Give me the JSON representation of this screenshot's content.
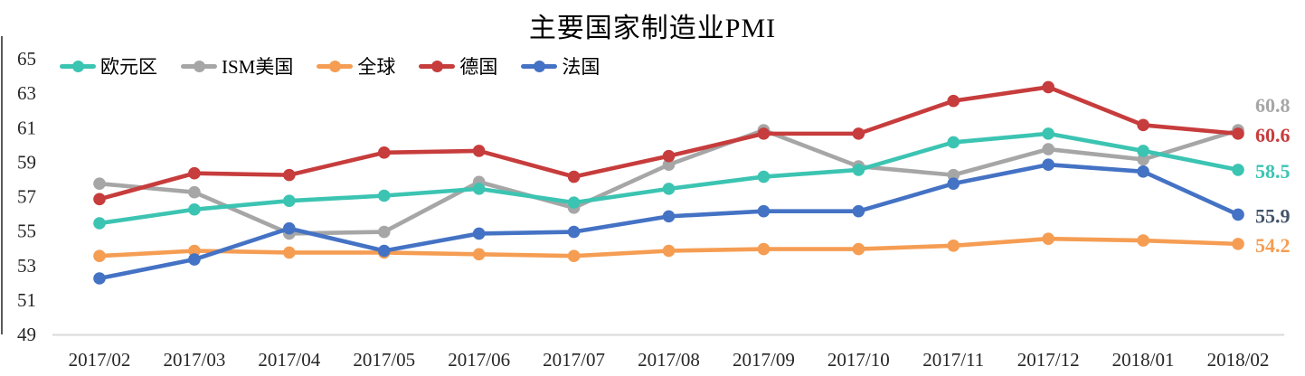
{
  "chart_data": {
    "type": "line",
    "title": "主要国家制造业PMI",
    "xlabel": "",
    "ylabel": "",
    "x": [
      "2017/02",
      "2017/03",
      "2017/04",
      "2017/05",
      "2017/06",
      "2017/07",
      "2017/08",
      "2017/09",
      "2017/10",
      "2017/11",
      "2017/12",
      "2018/01",
      "2018/02"
    ],
    "y_ticks": [
      49,
      51,
      53,
      55,
      57,
      59,
      61,
      63,
      65
    ],
    "ylim": [
      49,
      65
    ],
    "grid": false,
    "legend_position": "top-left",
    "marker": "circle",
    "series": [
      {
        "key": "eurozone",
        "name": "欧元区",
        "color": "#3cc4b2",
        "end_label": "58.5",
        "end_label_color": "#3cc4b2",
        "values": [
          55.4,
          56.2,
          56.7,
          57.0,
          57.4,
          56.6,
          57.4,
          58.1,
          58.5,
          60.1,
          60.6,
          59.6,
          58.5
        ]
      },
      {
        "key": "ism-us",
        "name": "ISM美国",
        "color": "#a6a6a6",
        "end_label": "60.8",
        "end_label_color": "#a6a6a6",
        "values": [
          57.7,
          57.2,
          54.8,
          54.9,
          57.8,
          56.3,
          58.8,
          60.8,
          58.7,
          58.2,
          59.7,
          59.1,
          60.8
        ]
      },
      {
        "key": "global",
        "name": "全球",
        "color": "#f59d53",
        "end_label": "54.2",
        "end_label_color": "#f59d53",
        "values": [
          53.5,
          53.8,
          53.7,
          53.7,
          53.6,
          53.5,
          53.8,
          53.9,
          53.9,
          54.1,
          54.5,
          54.4,
          54.2
        ]
      },
      {
        "key": "germany",
        "name": "德国",
        "color": "#c73c3c",
        "end_label": "60.6",
        "end_label_color": "#c73c3c",
        "values": [
          56.8,
          58.3,
          58.2,
          59.5,
          59.6,
          58.1,
          59.3,
          60.6,
          60.6,
          62.5,
          63.3,
          61.1,
          60.6
        ]
      },
      {
        "key": "france",
        "name": "法国",
        "color": "#4472c4",
        "end_label": "55.9",
        "end_label_color": "#44546a",
        "values": [
          52.2,
          53.3,
          55.1,
          53.8,
          54.8,
          54.9,
          55.8,
          56.1,
          56.1,
          57.7,
          58.8,
          58.4,
          55.9
        ]
      }
    ],
    "axis_text_color": "#262626",
    "y_axis_line_color": "#595959",
    "x_axis_line_color": "#d9d9d9"
  }
}
